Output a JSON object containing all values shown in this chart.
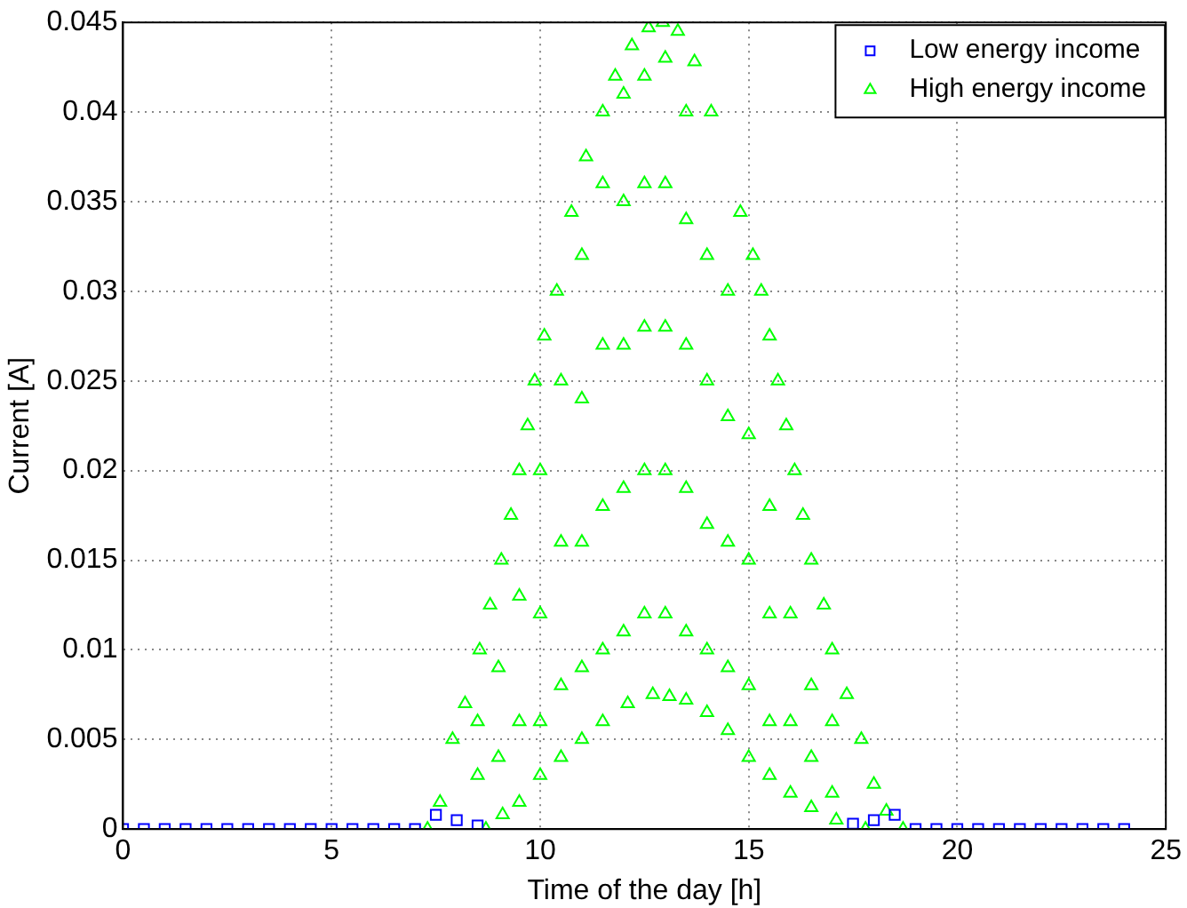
{
  "chart_data": {
    "type": "scatter",
    "xlabel": "Time of the day [h]",
    "ylabel": "Current [A]",
    "xlim": [
      0,
      25
    ],
    "xticks": [
      0,
      5,
      10,
      15,
      20,
      25
    ],
    "ylim": [
      0,
      0.045
    ],
    "yticks": [
      0,
      0.005,
      0.01,
      0.015,
      0.02,
      0.025,
      0.03,
      0.035,
      0.04,
      0.045
    ],
    "grid": true,
    "legend": "top right",
    "line_style": "dotted",
    "series": [
      {
        "name": "Low energy income",
        "color": "#0000ff",
        "marker": "square",
        "x": [
          0,
          0.5,
          1,
          1.5,
          2,
          2.5,
          3,
          3.5,
          4,
          4.5,
          5,
          5.5,
          6,
          6.5,
          7,
          7.5,
          8,
          8.5,
          17.5,
          18,
          18.5,
          19,
          19.5,
          20,
          20.5,
          21,
          21.5,
          22,
          22.5,
          23,
          23.5,
          24
        ],
        "values": [
          0,
          0,
          0,
          0,
          0,
          0,
          0,
          0,
          0,
          0,
          0,
          0,
          0,
          0,
          0,
          0.0008,
          0.0005,
          0.0002,
          0.0003,
          0.0005,
          0.0008,
          0,
          0,
          0,
          0,
          0,
          0,
          0,
          0,
          0,
          0,
          0
        ]
      },
      {
        "name": "High energy income",
        "color": "#00ff00",
        "marker": "triangle",
        "x": [
          7.3,
          7.6,
          7.9,
          8.2,
          8.55,
          8.8,
          9.07,
          9.3,
          9.5,
          9.7,
          9.87,
          10.1,
          10.4,
          10.75,
          11.1,
          11.5,
          11.8,
          12.2,
          12.6,
          12.94,
          13.3,
          13.7,
          14.1,
          14.5,
          14.8,
          15.1,
          15.3,
          15.5,
          15.7,
          15.9,
          16.1,
          16.3,
          16.5,
          16.8,
          17.0,
          17.35,
          17.7,
          18.0,
          18.3,
          18.7,
          8.7,
          9.1,
          9.5,
          10.0,
          10.5,
          11.0,
          11.5,
          12.1,
          12.7,
          13.1,
          13.5,
          14.0,
          14.5,
          15.0,
          15.5,
          16.0,
          16.5,
          17.1,
          17.8,
          8.5,
          8.5,
          9.0,
          9.0,
          9.5,
          9.5,
          10,
          10,
          10,
          10.5,
          10.5,
          10.5,
          11,
          11,
          11,
          11,
          11.5,
          11.5,
          11.5,
          11.5,
          12,
          12,
          12,
          12,
          12,
          12.5,
          12.5,
          12.5,
          12.5,
          12.5,
          13,
          13,
          13,
          13,
          13,
          13.5,
          13.5,
          13.5,
          13.5,
          13.5,
          14,
          14,
          14,
          14,
          14.5,
          14.5,
          14.5,
          14.5,
          15,
          15,
          15,
          15.5,
          15.5,
          15.5,
          16,
          16,
          16.5,
          16.5,
          17,
          17
        ],
        "values": [
          0,
          0.0015,
          0.005,
          0.007,
          0.01,
          0.0125,
          0.015,
          0.0175,
          0.02,
          0.0225,
          0.025,
          0.0275,
          0.03,
          0.0344,
          0.0375,
          0.04,
          0.042,
          0.0437,
          0.0447,
          0.045,
          0.0445,
          0.0428,
          0.04,
          null,
          0.0344,
          0.032,
          0.03,
          0.0275,
          0.025,
          0.0225,
          0.02,
          0.0175,
          0.015,
          0.0125,
          0.01,
          0.0075,
          0.005,
          0.0025,
          0.001,
          0,
          0,
          0.0008,
          0.0015,
          0.003,
          0.004,
          0.005,
          0.006,
          0.007,
          0.0075,
          0.0074,
          0.0072,
          0.0065,
          0.0055,
          0.004,
          0.003,
          0.002,
          0.0012,
          0.0005,
          0,
          0.003,
          0.006,
          0.004,
          0.009,
          0.006,
          0.013,
          0.006,
          0.012,
          0.02,
          0.008,
          0.016,
          0.025,
          0.009,
          0.016,
          0.024,
          0.032,
          0.01,
          0.018,
          0.027,
          0.036,
          0.011,
          0.019,
          0.027,
          0.035,
          0.041,
          0.012,
          0.02,
          0.028,
          0.036,
          0.042,
          0.012,
          0.02,
          0.028,
          0.036,
          0.043,
          0.011,
          0.019,
          0.027,
          0.034,
          0.04,
          0.01,
          0.017,
          0.025,
          0.032,
          0.009,
          0.016,
          0.023,
          0.03,
          0.008,
          0.015,
          0.022,
          0.006,
          0.012,
          0.018,
          0.006,
          0.012,
          0.004,
          0.008,
          0.002,
          0.006
        ]
      }
    ]
  }
}
